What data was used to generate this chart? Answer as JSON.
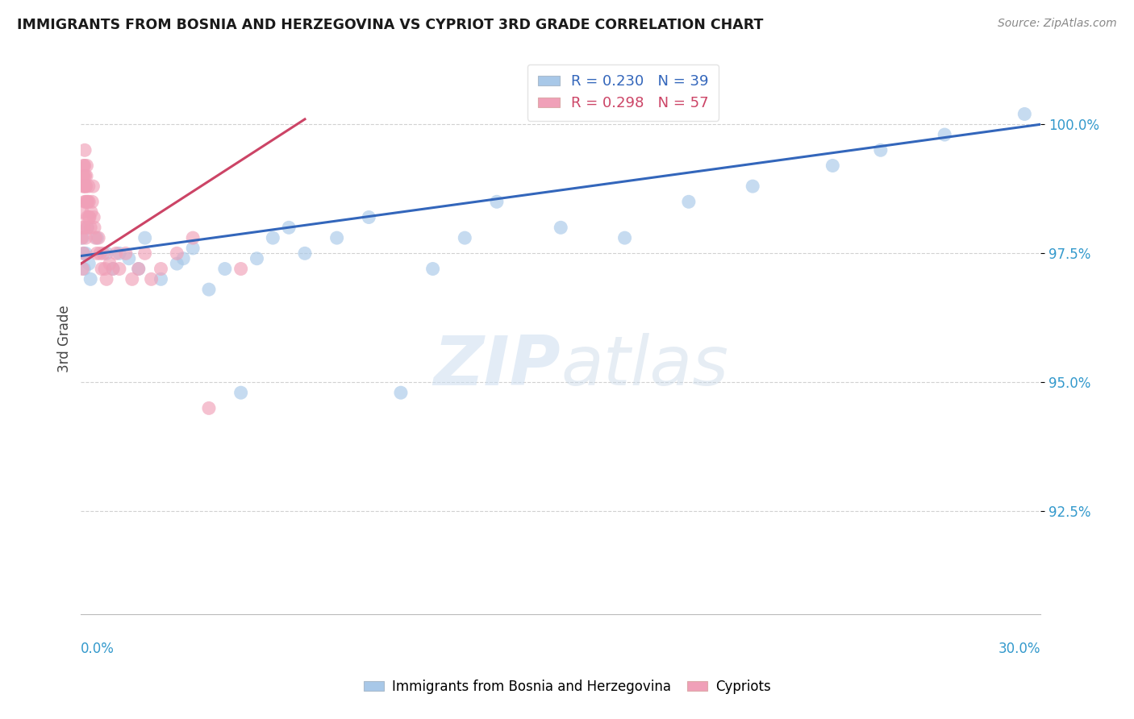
{
  "title": "IMMIGRANTS FROM BOSNIA AND HERZEGOVINA VS CYPRIOT 3RD GRADE CORRELATION CHART",
  "source": "Source: ZipAtlas.com",
  "ylabel": "3rd Grade",
  "xlim": [
    0.0,
    30.0
  ],
  "ylim": [
    90.5,
    101.2
  ],
  "yticks": [
    92.5,
    95.0,
    97.5,
    100.0
  ],
  "ytick_labels": [
    "92.5%",
    "95.0%",
    "97.5%",
    "100.0%"
  ],
  "blue_R": 0.23,
  "blue_N": 39,
  "pink_R": 0.298,
  "pink_N": 57,
  "blue_color": "#A8C8E8",
  "pink_color": "#F0A0B8",
  "blue_line_color": "#3366BB",
  "pink_line_color": "#CC4466",
  "watermark_zip": "ZIP",
  "watermark_atlas": "atlas",
  "background_color": "#FFFFFF",
  "grid_color": "#CCCCCC",
  "blue_scatter_x": [
    0.05,
    0.08,
    0.1,
    0.15,
    0.2,
    0.25,
    0.3,
    0.5,
    0.8,
    1.0,
    1.5,
    2.0,
    2.5,
    3.0,
    3.5,
    4.0,
    4.5,
    5.0,
    5.5,
    6.0,
    6.5,
    7.0,
    8.0,
    9.0,
    10.0,
    11.0,
    12.0,
    13.0,
    15.0,
    17.0,
    19.0,
    21.0,
    23.5,
    25.0,
    27.0,
    29.5,
    1.2,
    1.8,
    3.2
  ],
  "blue_scatter_y": [
    97.8,
    97.5,
    97.2,
    97.5,
    98.0,
    97.3,
    97.0,
    97.8,
    97.5,
    97.2,
    97.4,
    97.8,
    97.0,
    97.3,
    97.6,
    96.8,
    97.2,
    94.8,
    97.4,
    97.8,
    98.0,
    97.5,
    97.8,
    98.2,
    94.8,
    97.2,
    97.8,
    98.5,
    98.0,
    97.8,
    98.5,
    98.8,
    99.2,
    99.5,
    99.8,
    100.2,
    97.5,
    97.2,
    97.4
  ],
  "pink_scatter_x": [
    0.02,
    0.04,
    0.05,
    0.06,
    0.07,
    0.08,
    0.09,
    0.1,
    0.11,
    0.12,
    0.13,
    0.14,
    0.15,
    0.16,
    0.17,
    0.18,
    0.19,
    0.2,
    0.22,
    0.24,
    0.25,
    0.27,
    0.3,
    0.32,
    0.35,
    0.38,
    0.4,
    0.42,
    0.45,
    0.5,
    0.55,
    0.6,
    0.65,
    0.7,
    0.75,
    0.8,
    0.9,
    1.0,
    1.1,
    1.2,
    1.4,
    1.6,
    1.8,
    2.0,
    2.2,
    2.5,
    3.0,
    3.5,
    4.0,
    5.0,
    0.08,
    0.1,
    0.12,
    0.15,
    0.2,
    0.25,
    0.05
  ],
  "pink_scatter_y": [
    97.8,
    98.0,
    98.3,
    98.8,
    99.0,
    99.2,
    99.0,
    98.8,
    99.2,
    99.5,
    99.0,
    98.8,
    98.5,
    98.8,
    99.0,
    99.2,
    98.5,
    98.2,
    98.5,
    98.8,
    98.5,
    98.2,
    98.0,
    98.3,
    98.5,
    98.8,
    98.2,
    98.0,
    97.8,
    97.5,
    97.8,
    97.5,
    97.2,
    97.5,
    97.2,
    97.0,
    97.3,
    97.2,
    97.5,
    97.2,
    97.5,
    97.0,
    97.2,
    97.5,
    97.0,
    97.2,
    97.5,
    97.8,
    94.5,
    97.2,
    97.5,
    98.0,
    98.5,
    97.8,
    98.0,
    98.2,
    97.2
  ]
}
